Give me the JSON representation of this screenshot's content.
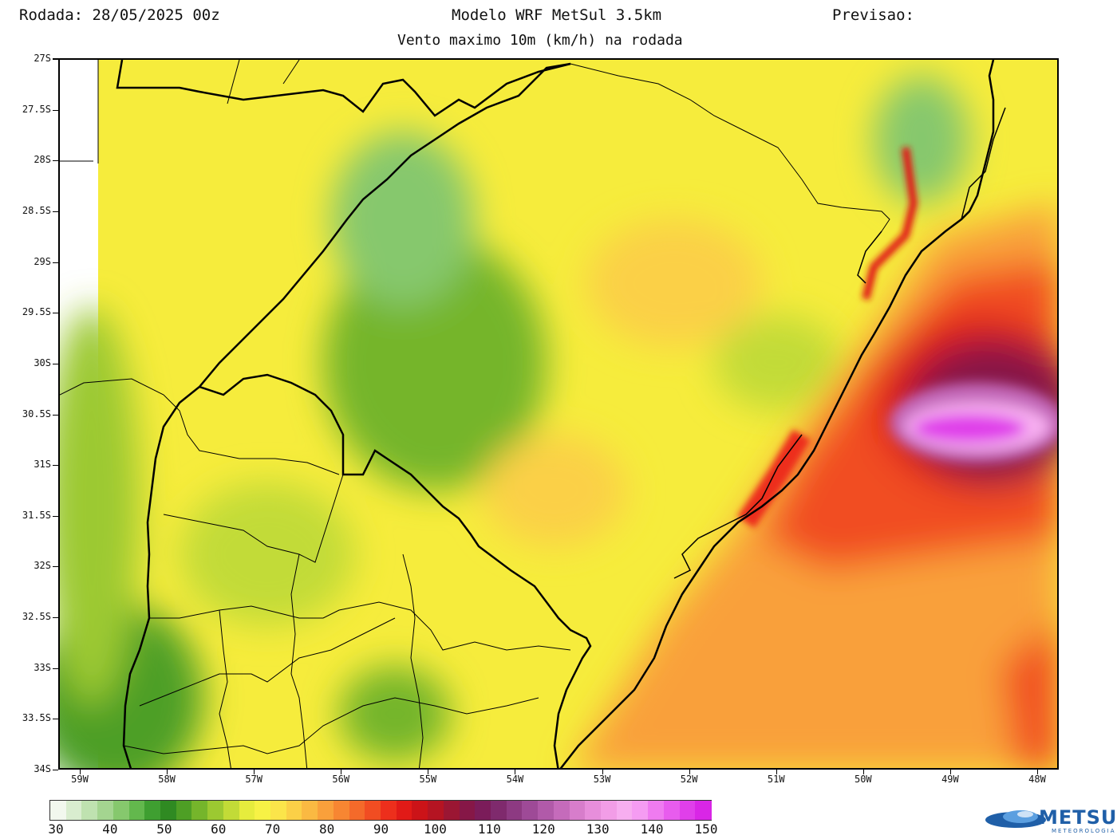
{
  "header": {
    "run_label": "Rodada: 28/05/2025 00z",
    "model_title": "Modelo WRF MetSul 3.5km",
    "forecast_label": "Previsao:",
    "subtitle": "Vento maximo 10m (km/h) na rodada"
  },
  "map": {
    "lat_labels": [
      "27S",
      "27.5S",
      "28S",
      "28.5S",
      "29S",
      "29.5S",
      "30S",
      "30.5S",
      "31S",
      "31.5S",
      "32S",
      "32.5S",
      "33S",
      "33.5S",
      "34S"
    ],
    "lon_labels": [
      "59W",
      "58W",
      "57W",
      "56W",
      "55W",
      "54W",
      "53W",
      "52W",
      "51W",
      "50W",
      "49W",
      "48W"
    ]
  },
  "colorbar": {
    "labels": [
      "30",
      "40",
      "50",
      "60",
      "70",
      "80",
      "90",
      "100",
      "110",
      "120",
      "130",
      "140",
      "150"
    ],
    "colors": [
      "#f2f8ee",
      "#d9edcf",
      "#bfe2b0",
      "#a4d590",
      "#86c86d",
      "#63b84d",
      "#3f9f31",
      "#2f8a22",
      "#4e9f25",
      "#75b52b",
      "#9cc931",
      "#c2db37",
      "#e6ec3d",
      "#f7f245",
      "#fbe54a",
      "#fbd047",
      "#fab942",
      "#f9a03b",
      "#f78632",
      "#f46a2a",
      "#f14d22",
      "#ed2f1c",
      "#e11a17",
      "#cc1318",
      "#b51422",
      "#9b1633",
      "#861747",
      "#7b1c5a",
      "#7f2a6d",
      "#8d3a82",
      "#9e4a97",
      "#b15aa9",
      "#c56bbb",
      "#d77dcb",
      "#e78edb",
      "#f29de7",
      "#f7aef0",
      "#f59cf2",
      "#ef7bf0",
      "#e85cee",
      "#e03fea",
      "#d926e6"
    ],
    "unit": "km/h"
  },
  "logo": {
    "name": "METSUL",
    "subtitle": "METEOROLOGIA"
  }
}
